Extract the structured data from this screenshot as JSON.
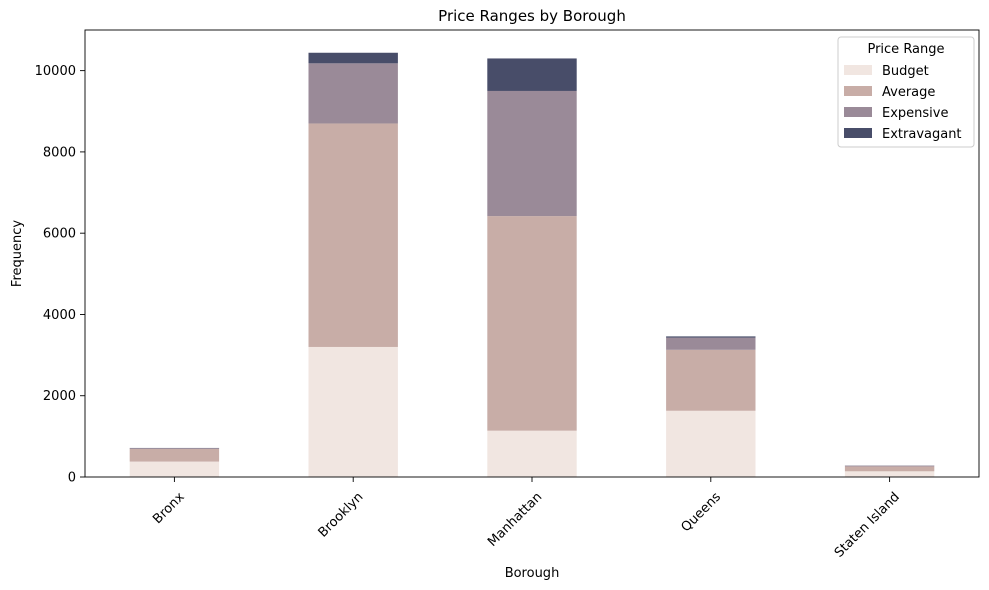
{
  "chart_data": {
    "type": "bar",
    "stacked": true,
    "title": "Price Ranges by Borough",
    "xlabel": "Borough",
    "ylabel": "Frequency",
    "categories": [
      "Bronx",
      "Brooklyn",
      "Manhattan",
      "Queens",
      "Staten Island"
    ],
    "ylim": [
      0,
      11000
    ],
    "yticks": [
      0,
      2000,
      4000,
      6000,
      8000,
      10000
    ],
    "legend": {
      "title": "Price Range",
      "placement": "top-right"
    },
    "series": [
      {
        "name": "Budget",
        "color": "#f1e6e1",
        "values": [
          380,
          3200,
          1140,
          1630,
          140
        ]
      },
      {
        "name": "Average",
        "color": "#c8ada7",
        "values": [
          310,
          5500,
          5280,
          1500,
          120
        ]
      },
      {
        "name": "Expensive",
        "color": "#9a8a98",
        "values": [
          20,
          1480,
          3080,
          300,
          20
        ]
      },
      {
        "name": "Extravagant",
        "color": "#484d69",
        "values": [
          5,
          260,
          800,
          30,
          3
        ]
      }
    ]
  }
}
